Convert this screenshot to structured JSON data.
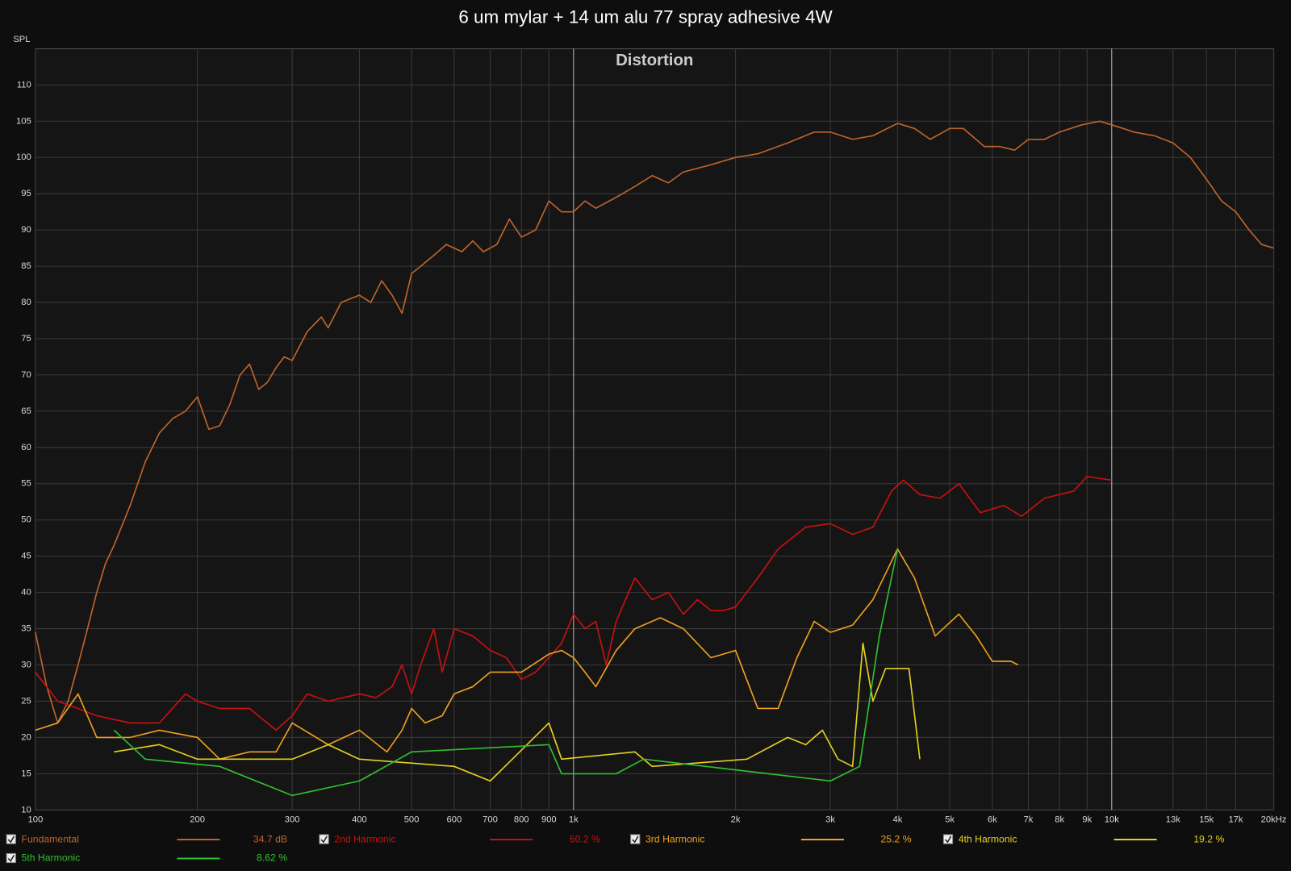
{
  "chart_data": {
    "type": "line",
    "title": "6 um mylar + 14 um alu 77 spray adhesive 4W",
    "subtitle": "Distortion",
    "y_label": "SPL",
    "xscale": "log",
    "xlim": [
      100,
      20000
    ],
    "ylim": [
      10,
      115
    ],
    "grid": true,
    "xticks": [
      100,
      200,
      300,
      400,
      500,
      600,
      700,
      800,
      900,
      {
        "value": 1000,
        "label": "1k"
      },
      {
        "value": 2000,
        "label": "2k"
      },
      {
        "value": 3000,
        "label": "3k"
      },
      {
        "value": 4000,
        "label": "4k"
      },
      {
        "value": 5000,
        "label": "5k"
      },
      {
        "value": 6000,
        "label": "6k"
      },
      {
        "value": 7000,
        "label": "7k"
      },
      {
        "value": 8000,
        "label": "8k"
      },
      {
        "value": 9000,
        "label": "9k"
      },
      {
        "value": 10000,
        "label": "10k"
      },
      {
        "value": 13000,
        "label": "13k"
      },
      {
        "value": 15000,
        "label": "15k"
      },
      {
        "value": 17000,
        "label": "17k"
      },
      {
        "value": 20000,
        "label": "20kHz"
      }
    ],
    "yticks": [
      10,
      15,
      20,
      25,
      30,
      35,
      40,
      45,
      50,
      55,
      60,
      65,
      70,
      75,
      80,
      85,
      90,
      95,
      100,
      105,
      110
    ],
    "series": [
      {
        "name": "Fundamental",
        "color": "#c0642a",
        "legend_value": "34.7 dB",
        "x": [
          100,
          105,
          110,
          115,
          120,
          125,
          130,
          135,
          140,
          150,
          160,
          170,
          180,
          190,
          200,
          210,
          220,
          230,
          240,
          250,
          260,
          270,
          280,
          290,
          300,
          320,
          340,
          350,
          370,
          400,
          420,
          440,
          460,
          480,
          500,
          520,
          550,
          580,
          620,
          650,
          680,
          720,
          760,
          800,
          850,
          900,
          950,
          1000,
          1050,
          1100,
          1200,
          1300,
          1400,
          1500,
          1600,
          1800,
          2000,
          2200,
          2500,
          2800,
          3000,
          3300,
          3600,
          4000,
          4300,
          4600,
          5000,
          5300,
          5800,
          6200,
          6600,
          7000,
          7500,
          8000,
          8800,
          9500,
          10000,
          10500,
          11000,
          12000,
          13000,
          14000,
          15000,
          16000,
          17000,
          18000,
          19000,
          20000
        ],
        "values": [
          34.5,
          27,
          22,
          25,
          30,
          35,
          40,
          44,
          46.5,
          52,
          58,
          62,
          64,
          65,
          67,
          62.5,
          63,
          66,
          70,
          71.5,
          68,
          69,
          71,
          72.5,
          72,
          76,
          78,
          76.5,
          80,
          81,
          80,
          83,
          81,
          78.5,
          84,
          85,
          86.5,
          88,
          87,
          88.5,
          87,
          88,
          91.5,
          89,
          90,
          94,
          92.5,
          92.5,
          94,
          93,
          94.5,
          96,
          97.5,
          96.5,
          98,
          99,
          100,
          100.5,
          102,
          103.5,
          103.5,
          102.5,
          103,
          104.7,
          104,
          102.5,
          104,
          104,
          101.5,
          101.5,
          101,
          102.5,
          102.5,
          103.5,
          104.5,
          105,
          104.5,
          104,
          103.5,
          103,
          102,
          100,
          97,
          94,
          92.5,
          90,
          88,
          87.5
        ]
      },
      {
        "name": "2nd Harmonic",
        "color": "#cc1010",
        "legend_value": "60.2 %",
        "x": [
          100,
          110,
          120,
          130,
          150,
          170,
          190,
          200,
          220,
          250,
          280,
          300,
          320,
          350,
          400,
          430,
          460,
          480,
          500,
          520,
          550,
          570,
          600,
          650,
          700,
          750,
          800,
          850,
          900,
          950,
          1000,
          1050,
          1100,
          1150,
          1200,
          1300,
          1400,
          1500,
          1600,
          1700,
          1800,
          1900,
          2000,
          2200,
          2400,
          2700,
          3000,
          3300,
          3600,
          3900,
          4100,
          4400,
          4800,
          5200,
          5700,
          6300,
          6800,
          7500,
          8500,
          9000,
          10000
        ],
        "values": [
          29,
          25,
          24,
          23,
          22,
          22,
          26,
          25,
          24,
          24,
          21,
          23,
          26,
          25,
          26,
          25.5,
          27,
          30,
          26,
          30,
          35,
          29,
          35,
          34,
          32,
          31,
          28,
          29,
          31,
          33,
          37,
          35,
          36,
          30,
          36,
          42,
          39,
          40,
          37,
          39,
          37.5,
          37.5,
          38,
          42,
          46,
          49,
          49.5,
          48,
          49,
          54,
          55.5,
          53.5,
          53,
          55,
          51,
          52,
          50.5,
          53,
          54,
          56,
          55.5
        ]
      },
      {
        "name": "3rd Harmonic",
        "color": "#f0a020",
        "legend_value": "25.2 %",
        "x": [
          100,
          110,
          120,
          130,
          150,
          170,
          200,
          220,
          250,
          280,
          300,
          350,
          400,
          450,
          480,
          500,
          530,
          570,
          600,
          650,
          700,
          800,
          900,
          950,
          1000,
          1050,
          1100,
          1200,
          1300,
          1450,
          1600,
          1800,
          2000,
          2200,
          2400,
          2600,
          2800,
          3000,
          3300,
          3600,
          4000,
          4300,
          4700,
          5200,
          5600,
          6000,
          6500,
          6700
        ],
        "values": [
          21,
          22,
          26,
          20,
          20,
          21,
          20,
          17,
          18,
          18,
          22,
          19,
          21,
          18,
          21,
          24,
          22,
          23,
          26,
          27,
          29,
          29,
          31.5,
          32,
          31,
          29,
          27,
          32,
          35,
          36.5,
          35,
          31,
          32,
          24,
          24,
          31,
          36,
          34.5,
          35.5,
          39,
          46,
          42,
          34,
          37,
          34,
          30.5,
          30.5,
          30
        ]
      },
      {
        "name": "4th Harmonic",
        "color": "#e6d020",
        "legend_value": "19.2 %",
        "x": [
          140,
          170,
          200,
          300,
          350,
          400,
          600,
          700,
          900,
          950,
          1300,
          1400,
          2100,
          2500,
          2700,
          2900,
          3100,
          3300,
          3450,
          3600,
          3800,
          4200,
          4400
        ],
        "values": [
          18,
          19,
          17,
          17,
          19,
          17,
          16,
          14,
          22,
          17,
          18,
          16,
          17,
          20,
          19,
          21,
          17,
          16,
          33,
          25,
          29.5,
          29.5,
          17
        ]
      },
      {
        "name": "5th Harmonic",
        "color": "#30c030",
        "legend_value": "8.62 %",
        "x": [
          140,
          160,
          220,
          300,
          400,
          500,
          900,
          950,
          1200,
          1350,
          3000,
          3400,
          3700,
          4000
        ],
        "values": [
          21,
          17,
          16,
          12,
          14,
          18,
          19,
          15,
          15,
          17,
          14,
          16,
          34,
          46
        ]
      }
    ]
  }
}
